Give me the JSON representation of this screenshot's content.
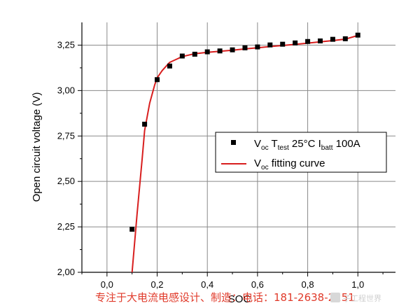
{
  "chart_data": {
    "type": "scatter",
    "xlabel": "SOC",
    "ylabel": "Open circuit voltage (V)",
    "xlim": [
      -0.1,
      1.15
    ],
    "ylim": [
      2.0,
      3.375
    ],
    "grid": true,
    "legend_position": "right",
    "x_ticks": [
      0.0,
      0.2,
      0.4,
      0.6,
      0.8,
      1.0
    ],
    "x_tick_labels": [
      "0,0",
      "0,2",
      "0,4",
      "0,6",
      "0,8",
      "1,0"
    ],
    "y_ticks": [
      2.0,
      2.25,
      2.5,
      2.75,
      3.0,
      3.25
    ],
    "y_tick_labels": [
      "2,00",
      "2,25",
      "2,50",
      "2,75",
      "3,00",
      "3,25"
    ],
    "series": [
      {
        "name": "Voc Ttest 25°C Ibatt 100A",
        "kind": "scatter",
        "color": "#000000",
        "x": [
          0.1,
          0.15,
          0.2,
          0.25,
          0.3,
          0.35,
          0.4,
          0.45,
          0.5,
          0.55,
          0.6,
          0.65,
          0.7,
          0.75,
          0.8,
          0.85,
          0.9,
          0.95,
          1.0
        ],
        "y": [
          2.237,
          2.815,
          3.06,
          3.135,
          3.19,
          3.2,
          3.213,
          3.218,
          3.224,
          3.235,
          3.24,
          3.251,
          3.255,
          3.262,
          3.27,
          3.273,
          3.282,
          3.285,
          3.305
        ]
      },
      {
        "name": "Voc fitting curve",
        "kind": "line",
        "color": "#d81e1e",
        "x": [
          0.1,
          0.12,
          0.14,
          0.15,
          0.17,
          0.19,
          0.2,
          0.22,
          0.25,
          0.3,
          0.35,
          0.4,
          0.45,
          0.5,
          0.55,
          0.6,
          0.65,
          0.7,
          0.75,
          0.8,
          0.85,
          0.9,
          0.95,
          1.0
        ],
        "y": [
          2.0,
          2.32,
          2.62,
          2.78,
          2.93,
          3.03,
          3.07,
          3.11,
          3.155,
          3.187,
          3.203,
          3.21,
          3.216,
          3.222,
          3.229,
          3.235,
          3.242,
          3.248,
          3.254,
          3.261,
          3.268,
          3.275,
          3.283,
          3.303
        ]
      }
    ],
    "legend": {
      "entries": [
        {
          "main": "V",
          "sub1": "oc",
          "text1": " T",
          "sub2": "test",
          "text2": " 25°C I",
          "sub3": "batt",
          "text3": " 100A"
        },
        {
          "main": "V",
          "sub1": "oc",
          "text1": " fitting curve",
          "sub2": "",
          "text2": "",
          "sub3": "",
          "text3": ""
        }
      ]
    }
  },
  "watermark": {
    "text": "专注于大电流电感设计、制造：电话：181-2638-2251",
    "logo_text": "子工程世界"
  }
}
